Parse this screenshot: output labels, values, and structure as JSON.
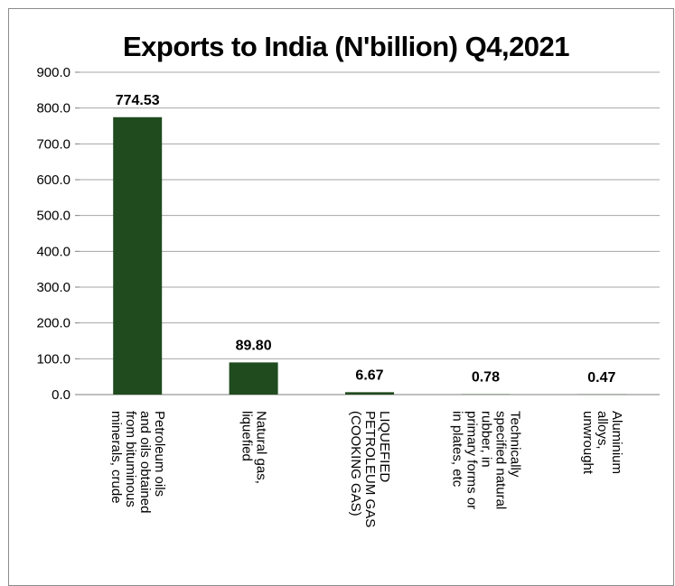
{
  "chart_data": {
    "type": "bar",
    "title": "Exports to India (N'billion) Q4,2021",
    "xlabel": "",
    "ylabel": "",
    "ylim": [
      0,
      900
    ],
    "yticks": [
      "0.0",
      "100.0",
      "200.0",
      "300.0",
      "400.0",
      "500.0",
      "600.0",
      "700.0",
      "800.0",
      "900.0"
    ],
    "grid": true,
    "legend": "none",
    "bar_color": "#1f4b1e",
    "categories": [
      [
        "Petroleum oils",
        "and oils obtained",
        "from bituminous",
        "minerals, crude"
      ],
      [
        "Natural gas,",
        "liquefied"
      ],
      [
        "LIQUEFIED",
        "PETROLEUM GAS",
        "(COOKING GAS)"
      ],
      [
        "Technically",
        "specified natural",
        "rubber, in",
        "primary forms or",
        "in plates, etc"
      ],
      [
        "Aluminium",
        "alloys,",
        "unwrought"
      ]
    ],
    "values": [
      774.53,
      89.8,
      6.67,
      0.78,
      0.47
    ],
    "data_labels": [
      "774.53",
      "89.80",
      "6.67",
      "0.78",
      "0.47"
    ]
  }
}
